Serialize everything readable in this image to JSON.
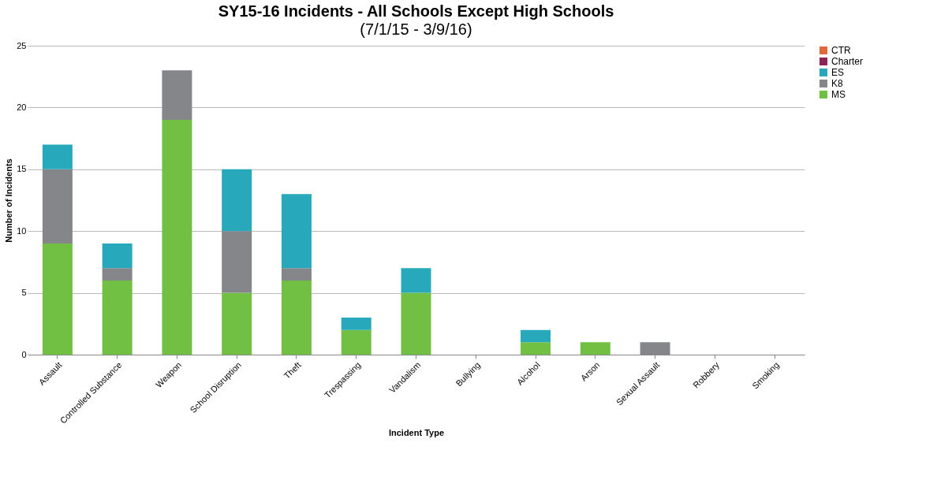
{
  "chart_data": {
    "type": "bar",
    "title": "SY15-16 Incidents - All Schools Except High Schools",
    "subtitle": "(7/1/15 - 3/9/16)",
    "xlabel": "Incident Type",
    "ylabel": "Number of Incidents",
    "categories": [
      "Assault",
      "Controlled Substance",
      "Weapon",
      "School Disruption",
      "Theft",
      "Trespassing",
      "Vandalism",
      "Bullying",
      "Alcohol",
      "Arson",
      "Sexual Assault",
      "Robbery",
      "Smoking"
    ],
    "stacked": true,
    "ylim": [
      0,
      25
    ],
    "yticks": [
      0,
      5,
      10,
      15,
      20,
      25
    ],
    "grid": "y",
    "legend": "right",
    "series": [
      {
        "name": "MS",
        "color": "#72c043",
        "values": [
          9,
          6,
          19,
          5,
          6,
          2,
          5,
          0,
          1,
          1,
          0,
          0,
          0
        ]
      },
      {
        "name": "K8",
        "color": "#85868a",
        "values": [
          6,
          1,
          4,
          5,
          1,
          0,
          0,
          0,
          0,
          0,
          1,
          0,
          0
        ]
      },
      {
        "name": "ES",
        "color": "#28a8bb",
        "values": [
          2,
          2,
          0,
          5,
          6,
          1,
          2,
          0,
          1,
          0,
          0,
          0,
          0
        ]
      },
      {
        "name": "Charter",
        "color": "#8e2455",
        "values": [
          0,
          0,
          0,
          0,
          0,
          0,
          0,
          0,
          0,
          0,
          0,
          0,
          0
        ]
      },
      {
        "name": "CTR",
        "color": "#e0683a",
        "values": [
          0,
          0,
          0,
          0,
          0,
          0,
          0,
          0,
          0,
          0,
          0,
          0,
          0
        ]
      }
    ]
  }
}
